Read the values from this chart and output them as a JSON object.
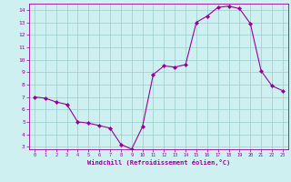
{
  "x": [
    0,
    1,
    2,
    3,
    4,
    5,
    6,
    7,
    8,
    9,
    10,
    11,
    12,
    13,
    14,
    15,
    16,
    17,
    18,
    19,
    20,
    21,
    22,
    23
  ],
  "y": [
    7.0,
    6.9,
    6.6,
    6.4,
    5.0,
    4.9,
    4.7,
    4.5,
    3.2,
    2.8,
    4.6,
    8.8,
    9.5,
    9.4,
    9.6,
    13.0,
    13.5,
    14.2,
    14.3,
    14.1,
    12.9,
    9.1,
    7.9,
    7.5
  ],
  "ylim": [
    3,
    14
  ],
  "xlim": [
    -0.5,
    23.5
  ],
  "yticks": [
    3,
    4,
    5,
    6,
    7,
    8,
    9,
    10,
    11,
    12,
    13,
    14
  ],
  "xticks": [
    0,
    1,
    2,
    3,
    4,
    5,
    6,
    7,
    8,
    9,
    10,
    11,
    12,
    13,
    14,
    15,
    16,
    17,
    18,
    19,
    20,
    21,
    22,
    23
  ],
  "line_color": "#990099",
  "marker_color": "#990099",
  "bg_color": "#cff0f0",
  "grid_color": "#99cccc",
  "xlabel": "Windchill (Refroidissement éolien,°C)",
  "xlabel_color": "#990099",
  "tick_color": "#990099",
  "axis_color": "#990099"
}
